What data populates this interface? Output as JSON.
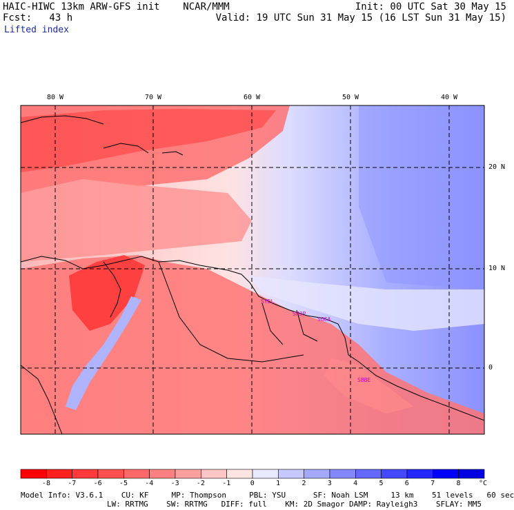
{
  "header": {
    "model_line": "HAIC-HIWC 13km ARW-GFS init    NCAR/MMM",
    "forecast_line": "Fcst:   43 h",
    "field_name": "Lifted index",
    "init_line": "Init: 00 UTC Sat 30 May 15",
    "valid_line": "Valid: 19 UTC Sun 31 May 15 (16 LST Sun 31 May 15)"
  },
  "map": {
    "lon_labels": [
      "80 W",
      "70 W",
      "60 W",
      "50 W",
      "40 W"
    ],
    "lat_labels": [
      "20 N",
      "10 N",
      "0"
    ],
    "stations": [
      "SYEL",
      "SMJP",
      "SOCA",
      "SBBE"
    ],
    "station_color": "#d200d2"
  },
  "colorbar": {
    "unit": "°C",
    "labels": [
      "-8",
      "-7",
      "-6",
      "-5",
      "-4",
      "-3",
      "-2",
      "-1",
      "0",
      "1",
      "2",
      "3",
      "4",
      "5",
      "6",
      "7",
      "8"
    ],
    "colors": [
      "#ff0000",
      "#ff2020",
      "#ff3a3a",
      "#ff5050",
      "#ff6868",
      "#ff8080",
      "#ffa0a0",
      "#ffc4c4",
      "#ffe4e4",
      "#e8e8ff",
      "#c6c8ff",
      "#a4a8ff",
      "#8488ff",
      "#6468ff",
      "#4448ff",
      "#2228ff",
      "#0000ff"
    ]
  },
  "footer": {
    "line1": "Model Info: V3.6.1    CU: KF     MP: Thompson     PBL: YSU      SF: Noah LSM     13 km    51 levels   60 sec",
    "line2": "LW: RRTMG    SW: RRTMG   DIFF: full    KM: 2D Smagor DAMP: Rayleigh3    SFLAY: MM5"
  }
}
